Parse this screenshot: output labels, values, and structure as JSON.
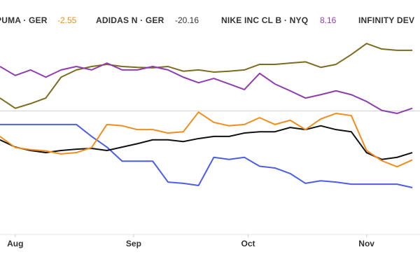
{
  "chart_data": {
    "type": "line",
    "x": [
      -4,
      0,
      4,
      8,
      12,
      16,
      20,
      24,
      28,
      32,
      36,
      40,
      44,
      48,
      52,
      56,
      60,
      64,
      68,
      72,
      76,
      80,
      84,
      88,
      92,
      96,
      100,
      104
    ],
    "xlim": [
      -4,
      106
    ],
    "xticks": [
      {
        "value": 0,
        "label": "Aug"
      },
      {
        "value": 31,
        "label": "Sep"
      },
      {
        "value": 61,
        "label": "Oct"
      },
      {
        "value": 92,
        "label": "Nov"
      }
    ],
    "ylim": [
      -29,
      26
    ],
    "reference_line": 0,
    "series": [
      {
        "name": "PUMA · GER",
        "change": -2.55,
        "change_color": "#f28c1c",
        "color": "#f28c1c",
        "values": [
          -6.0,
          -8.6,
          -9.1,
          -9.4,
          -10.1,
          -9.8,
          -8.6,
          -3.2,
          -3.5,
          -4.4,
          -4.4,
          -5.2,
          -4.9,
          -0.3,
          -2.7,
          -3.5,
          -3.2,
          -1.6,
          -3.2,
          -2.2,
          -4.4,
          -1.9,
          -0.6,
          -1.1,
          -9.3,
          -11.7,
          -13.1,
          -11.5
        ]
      },
      {
        "name": "ADIDAS N · GER",
        "change": -20.16,
        "change_color": "#333333",
        "color": "#111111",
        "values": [
          -6.8,
          -8.5,
          -9.3,
          -9.8,
          -9.3,
          -9.0,
          -8.8,
          -9.3,
          -8.5,
          -7.7,
          -6.8,
          -6.8,
          -7.2,
          -6.5,
          -6.0,
          -6.0,
          -5.2,
          -4.9,
          -4.9,
          -3.9,
          -4.4,
          -3.5,
          -4.4,
          -4.9,
          -9.8,
          -11.4,
          -10.9,
          -9.8
        ]
      },
      {
        "name": "NIKE INC CL B · NYQ",
        "change": 8.16,
        "change_color": "#8e3db0",
        "color": "#8e3db0",
        "values": [
          10.4,
          8.3,
          9.6,
          7.9,
          9.6,
          10.4,
          9.6,
          11.2,
          9.6,
          9.6,
          10.4,
          9.6,
          7.9,
          6.6,
          7.6,
          6.3,
          5.0,
          8.8,
          6.3,
          4.7,
          3.0,
          3.8,
          4.7,
          3.8,
          2.2,
          0.1,
          -0.6,
          0.6
        ]
      },
      {
        "name": "INFINITY DEV",
        "color": "#4a5ee8",
        "values": [
          -3.2,
          -3.2,
          -3.2,
          -3.2,
          -3.2,
          -3.2,
          -6.0,
          -8.5,
          -11.8,
          -11.8,
          -11.8,
          -16.7,
          -17.0,
          -17.5,
          -10.9,
          -11.4,
          -10.9,
          -13.0,
          -13.4,
          -14.7,
          -17.0,
          -16.4,
          -16.7,
          -17.2,
          -17.2,
          -17.2,
          -17.2,
          -18.0
        ]
      },
      {
        "color": "#7d6b1e",
        "values": [
          3.0,
          0.6,
          1.7,
          3.0,
          7.9,
          9.6,
          10.4,
          10.9,
          10.4,
          10.2,
          10.1,
          10.4,
          9.3,
          9.6,
          9.1,
          9.3,
          9.6,
          10.9,
          10.9,
          11.2,
          11.5,
          10.2,
          10.9,
          13.2,
          15.8,
          14.5,
          14.2,
          14.2
        ]
      }
    ]
  }
}
